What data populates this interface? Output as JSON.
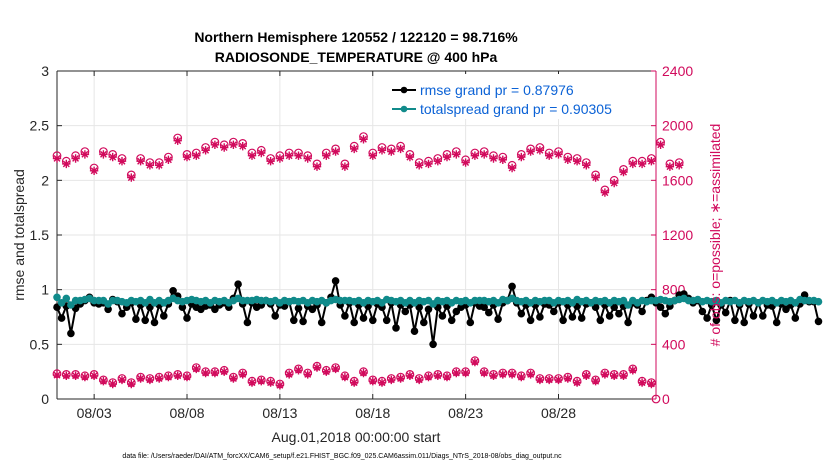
{
  "chart_data": {
    "type": "line",
    "title": "Northern Hemisphere 120552 / 122120 = 98.716%",
    "subtitle": "RADIOSONDE_TEMPERATURE @ 400 hPa",
    "xlabel": "Aug.01,2018 00:00:00 start",
    "ylabel": "rmse and totalspread",
    "y2label": "# of obs: o=possible; ∗=assimilated",
    "footnote": "data file: /Users/raeder/DAI/ATM_forcXX/CAM6_setup/f.e21.FHIST_BGC.f09_025.CAM6assim.011/Diags_NTrS_2018-08/obs_diag_output.nc",
    "xlim": [
      1,
      33.25
    ],
    "ylim": [
      0,
      3
    ],
    "y2lim": [
      0,
      2400
    ],
    "xticks": [
      3,
      8,
      13,
      18,
      23,
      28
    ],
    "xtick_labels": [
      "08/03",
      "08/08",
      "08/13",
      "08/18",
      "08/23",
      "08/28"
    ],
    "yticks": [
      0,
      0.5,
      1,
      1.5,
      2,
      2.5,
      3
    ],
    "ytick_labels": [
      "0",
      "0.5",
      "1",
      "1.5",
      "2",
      "2.5",
      "3"
    ],
    "y2ticks": [
      0,
      400,
      800,
      1200,
      1600,
      2000,
      2400
    ],
    "y2tick_labels": [
      "0",
      "400",
      "800",
      "1200",
      "1600",
      "2000",
      "2400"
    ],
    "grid": true,
    "legend_position": "top-right",
    "x_start": 1.0,
    "x_step": 0.25,
    "series": [
      {
        "name": "rmse grand pr = 0.87976",
        "axis": "left",
        "color": "#000000",
        "marker": "circle",
        "values": [
          0.84,
          0.74,
          0.85,
          0.6,
          0.83,
          0.87,
          0.9,
          0.93,
          0.88,
          0.87,
          0.88,
          0.82,
          0.91,
          0.89,
          0.78,
          0.84,
          0.88,
          0.73,
          0.86,
          0.72,
          0.84,
          0.7,
          0.86,
          0.76,
          0.87,
          0.99,
          0.94,
          0.84,
          0.74,
          0.87,
          0.84,
          0.82,
          0.85,
          0.86,
          0.82,
          0.86,
          0.88,
          0.84,
          0.92,
          1.05,
          0.87,
          0.7,
          0.88,
          0.84,
          0.86,
          0.9,
          0.87,
          0.76,
          0.86,
          0.85,
          0.89,
          0.72,
          0.83,
          0.71,
          0.85,
          0.82,
          0.86,
          0.7,
          0.88,
          0.93,
          1.08,
          0.86,
          0.76,
          0.88,
          0.7,
          0.86,
          0.74,
          0.85,
          0.72,
          0.87,
          0.84,
          0.72,
          0.88,
          0.65,
          0.86,
          0.8,
          0.86,
          0.62,
          0.84,
          0.7,
          0.82,
          0.5,
          0.84,
          0.76,
          0.85,
          0.72,
          0.8,
          0.84,
          0.86,
          0.7,
          0.88,
          0.85,
          0.84,
          0.79,
          0.86,
          0.73,
          0.88,
          0.9,
          1.03,
          0.88,
          0.78,
          0.86,
          0.72,
          0.86,
          0.75,
          0.87,
          0.86,
          0.8,
          0.88,
          0.72,
          0.86,
          0.75,
          0.85,
          0.74,
          0.87,
          0.88,
          0.84,
          0.72,
          0.86,
          0.76,
          0.84,
          0.78,
          0.85,
          0.7,
          0.88,
          0.86,
          0.8,
          0.9,
          0.93,
          0.88,
          0.84,
          0.78,
          0.85,
          0.9,
          0.95,
          0.96,
          0.92,
          0.88,
          0.9,
          0.8,
          0.74,
          0.86,
          0.72,
          0.86,
          0.79,
          0.9,
          0.72,
          0.86,
          0.7,
          0.87,
          0.76,
          0.88,
          0.76,
          0.86,
          0.85,
          0.7,
          0.87,
          0.82,
          0.86,
          0.74,
          0.87,
          0.95,
          0.89,
          0.89,
          0.71
        ]
      },
      {
        "name": "totalspread grand pr = 0.90305",
        "axis": "left",
        "color": "#118b8b",
        "marker": "circle",
        "values": [
          0.93,
          0.88,
          0.92,
          0.86,
          0.9,
          0.9,
          0.91,
          0.92,
          0.9,
          0.9,
          0.9,
          0.87,
          0.9,
          0.9,
          0.89,
          0.88,
          0.9,
          0.89,
          0.9,
          0.88,
          0.91,
          0.88,
          0.9,
          0.88,
          0.9,
          0.92,
          0.9,
          0.89,
          0.9,
          0.91,
          0.9,
          0.89,
          0.9,
          0.88,
          0.9,
          0.89,
          0.9,
          0.88,
          0.9,
          0.92,
          0.9,
          0.9,
          0.9,
          0.91,
          0.9,
          0.9,
          0.89,
          0.9,
          0.88,
          0.9,
          0.89,
          0.9,
          0.89,
          0.9,
          0.88,
          0.9,
          0.89,
          0.9,
          0.88,
          0.9,
          0.91,
          0.9,
          0.9,
          0.9,
          0.89,
          0.9,
          0.88,
          0.9,
          0.89,
          0.9,
          0.88,
          0.91,
          0.9,
          0.89,
          0.9,
          0.88,
          0.9,
          0.88,
          0.9,
          0.89,
          0.9,
          0.87,
          0.9,
          0.89,
          0.9,
          0.88,
          0.9,
          0.89,
          0.9,
          0.88,
          0.9,
          0.9,
          0.9,
          0.89,
          0.9,
          0.88,
          0.91,
          0.9,
          0.92,
          0.9,
          0.89,
          0.9,
          0.88,
          0.9,
          0.89,
          0.9,
          0.9,
          0.88,
          0.9,
          0.89,
          0.9,
          0.88,
          0.91,
          0.89,
          0.9,
          0.88,
          0.9,
          0.89,
          0.9,
          0.88,
          0.9,
          0.89,
          0.9,
          0.86,
          0.9,
          0.88,
          0.9,
          0.89,
          0.9,
          0.9,
          0.91,
          0.9,
          0.89,
          0.9,
          0.91,
          0.92,
          0.9,
          0.9,
          0.91,
          0.89,
          0.9,
          0.89,
          0.9,
          0.88,
          0.9,
          0.89,
          0.9,
          0.88,
          0.9,
          0.89,
          0.9,
          0.88,
          0.9,
          0.89,
          0.9,
          0.88,
          0.9,
          0.89,
          0.9,
          0.88,
          0.91,
          0.9,
          0.9,
          0.9,
          0.89
        ]
      },
      {
        "name": "possible (upper)",
        "axis": "right",
        "color": "#d10a5c",
        "marker": "o",
        "start": 1.0,
        "step": 0.5,
        "values": [
          1780,
          1740,
          1780,
          1810,
          1690,
          1810,
          1790,
          1760,
          1640,
          1760,
          1730,
          1730,
          1770,
          1910,
          1790,
          1800,
          1840,
          1880,
          1860,
          1880,
          1870,
          1800,
          1820,
          1760,
          1780,
          1800,
          1800,
          1780,
          1720,
          1800,
          1830,
          1720,
          1850,
          1920,
          1800,
          1840,
          1830,
          1850,
          1790,
          1730,
          1740,
          1760,
          1790,
          1810,
          1750,
          1800,
          1810,
          1780,
          1770,
          1710,
          1790,
          1830,
          1840,
          1800,
          1810,
          1770,
          1760,
          1730,
          1640,
          1530,
          1600,
          1680,
          1740,
          1740,
          1760,
          1880,
          1720,
          1730
        ]
      },
      {
        "name": "assimilated (upper)",
        "axis": "right",
        "color": "#d10a5c",
        "marker": "star",
        "start": 1.0,
        "step": 0.5,
        "values": [
          1760,
          1720,
          1760,
          1790,
          1670,
          1790,
          1770,
          1740,
          1620,
          1740,
          1710,
          1710,
          1750,
          1890,
          1770,
          1780,
          1820,
          1860,
          1840,
          1860,
          1850,
          1780,
          1800,
          1740,
          1760,
          1780,
          1780,
          1760,
          1700,
          1780,
          1810,
          1700,
          1830,
          1900,
          1780,
          1820,
          1810,
          1830,
          1770,
          1710,
          1720,
          1740,
          1770,
          1790,
          1730,
          1780,
          1790,
          1760,
          1750,
          1690,
          1770,
          1810,
          1820,
          1780,
          1790,
          1750,
          1740,
          1710,
          1620,
          1510,
          1580,
          1660,
          1720,
          1720,
          1740,
          1860,
          1700,
          1710
        ]
      },
      {
        "name": "possible (lower)",
        "axis": "right",
        "color": "#d10a5c",
        "marker": "o",
        "start": 1.0,
        "step": 0.5,
        "values": [
          185,
          180,
          180,
          170,
          180,
          140,
          120,
          150,
          120,
          160,
          150,
          160,
          170,
          180,
          170,
          230,
          200,
          200,
          210,
          160,
          190,
          130,
          140,
          130,
          110,
          190,
          220,
          190,
          240,
          210,
          230,
          170,
          130,
          200,
          140,
          130,
          150,
          160,
          180,
          150,
          170,
          180,
          170,
          200,
          200,
          280,
          200,
          180,
          190,
          190,
          170,
          190,
          150,
          150,
          150,
          160,
          130,
          180,
          140,
          190,
          180,
          180,
          220,
          130,
          120
        ]
      },
      {
        "name": "assimilated (lower)",
        "axis": "right",
        "color": "#d10a5c",
        "marker": "star",
        "start": 1.0,
        "step": 0.5,
        "values": [
          175,
          170,
          170,
          160,
          170,
          130,
          110,
          140,
          110,
          150,
          140,
          150,
          160,
          170,
          160,
          220,
          190,
          190,
          200,
          150,
          180,
          120,
          130,
          120,
          100,
          180,
          210,
          180,
          230,
          200,
          220,
          160,
          120,
          190,
          130,
          120,
          140,
          150,
          170,
          140,
          160,
          170,
          160,
          190,
          190,
          270,
          190,
          170,
          180,
          180,
          160,
          180,
          140,
          140,
          140,
          150,
          120,
          170,
          130,
          180,
          170,
          170,
          210,
          120,
          110
        ]
      }
    ]
  }
}
